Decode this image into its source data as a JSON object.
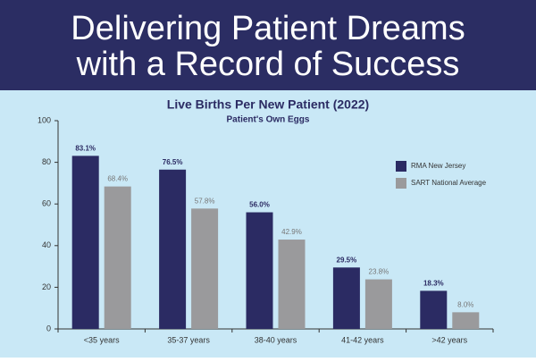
{
  "banner": {
    "lines": [
      "Delivering Patient Dreams",
      "with a Record of Success"
    ]
  },
  "chart_data": {
    "type": "bar",
    "title": "Live Births Per New Patient (2022)",
    "subtitle": "Patient's Own Eggs",
    "categories": [
      "<35 years",
      "35-37 years",
      "38-40 years",
      "41-42 years",
      ">42 years"
    ],
    "series": [
      {
        "name": "RMA New Jersey",
        "color": "#2b2b63",
        "values": [
          83.1,
          76.5,
          56.0,
          29.5,
          18.3
        ],
        "value_labels": [
          "83.1%",
          "76.5%",
          "56.0%",
          "29.5%",
          "18.3%"
        ]
      },
      {
        "name": "SART National Average",
        "color": "#9a9a9c",
        "values": [
          68.4,
          57.8,
          42.9,
          23.8,
          8.0
        ],
        "value_labels": [
          "68.4%",
          "57.8%",
          "42.9%",
          "23.8%",
          "8.0%"
        ]
      }
    ],
    "ylim": [
      0,
      100
    ],
    "yticks": [
      0,
      20,
      40,
      60,
      80,
      100
    ],
    "legend": "right",
    "grid": false
  }
}
